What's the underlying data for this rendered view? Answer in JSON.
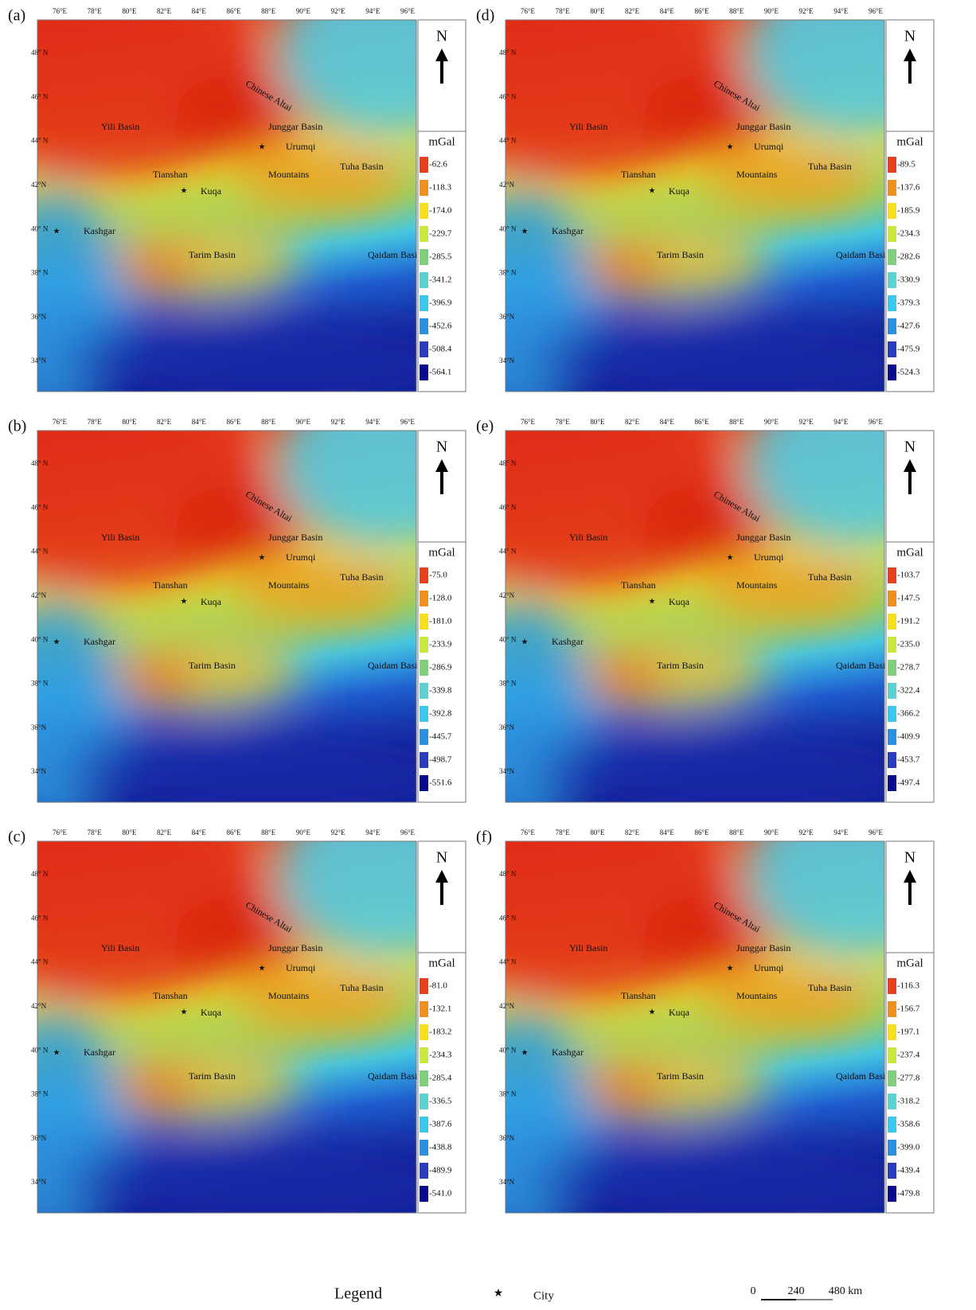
{
  "axes": {
    "xticks": [
      "76°E",
      "78°E",
      "80°E",
      "82°E",
      "84°E",
      "86°E",
      "88°E",
      "90°E",
      "92°E",
      "94°E",
      "96°E"
    ],
    "yticks": [
      "48° N",
      "46° N",
      "44° N",
      "42°N",
      "40° N",
      "38° N",
      "36°N",
      "34°N"
    ]
  },
  "north": "N",
  "unit": "mGal",
  "places": [
    "Chinese Altai",
    "Junggar Basin",
    "Urumqi",
    "Yili Basin",
    "Tianshan",
    "Mountains",
    "Tuha Basin",
    "Kuqa",
    "Kashgar",
    "Tarim Basin",
    "Qaidam Basin"
  ],
  "panels": [
    {
      "label": "(a)",
      "legend": [
        "-62.6",
        "-118.3",
        "-174.0",
        "-229.7",
        "-285.5",
        "-341.2",
        "-396.9",
        "-452.6",
        "-508.4",
        "-564.1"
      ]
    },
    {
      "label": "(b)",
      "legend": [
        "-75.0",
        "-128.0",
        "-181.0",
        "-233.9",
        "-286.9",
        "-339.8",
        "-392.8",
        "-445.7",
        "-498.7",
        "-551.6"
      ]
    },
    {
      "label": "(c)",
      "legend": [
        "-81.0",
        "-132.1",
        "-183.2",
        "-234.3",
        "-285.4",
        "-336.5",
        "-387.6",
        "-438.8",
        "-489.9",
        "-541.0"
      ]
    },
    {
      "label": "(d)",
      "legend": [
        "-89.5",
        "-137.6",
        "-185.9",
        "-234.3",
        "-282.6",
        "-330.9",
        "-379.3",
        "-427.6",
        "-475.9",
        "-524.3"
      ]
    },
    {
      "label": "(e)",
      "legend": [
        "-103.7",
        "-147.5",
        "-191.2",
        "-235.0",
        "-278.7",
        "-322.4",
        "-366.2",
        "-409.9",
        "-453.7",
        "-497.4"
      ]
    },
    {
      "label": "(f)",
      "legend": [
        "-116.3",
        "-156.7",
        "-197.1",
        "-237.4",
        "-277.8",
        "-318.2",
        "-358.6",
        "-399.0",
        "-439.4",
        "-479.8"
      ]
    }
  ],
  "footer": {
    "legend_title": "Legend",
    "city": "City",
    "scale": [
      "0",
      "240",
      "480 km"
    ]
  }
}
